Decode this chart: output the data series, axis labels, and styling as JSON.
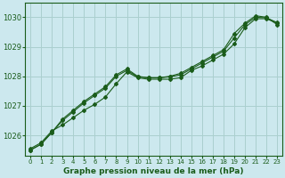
{
  "title": "Graphe pression niveau de la mer (hPa)",
  "bg_color": "#cce8ee",
  "grid_color": "#aacfcf",
  "line_color": "#1a5c1a",
  "xlim": [
    -0.5,
    23.5
  ],
  "ylim": [
    1025.3,
    1030.5
  ],
  "yticks": [
    1026,
    1027,
    1028,
    1029,
    1030
  ],
  "xticks": [
    0,
    1,
    2,
    3,
    4,
    5,
    6,
    7,
    8,
    9,
    10,
    11,
    12,
    13,
    14,
    15,
    16,
    17,
    18,
    19,
    20,
    21,
    22,
    23
  ],
  "line1_x": [
    0,
    1,
    2,
    3,
    4,
    5,
    6,
    7,
    8,
    9,
    10,
    11,
    12,
    13,
    14,
    15,
    16,
    17,
    18,
    19,
    20,
    21,
    22,
    23
  ],
  "line1_y": [
    1025.55,
    1025.75,
    1026.15,
    1026.35,
    1026.6,
    1026.85,
    1027.05,
    1027.3,
    1027.75,
    1028.15,
    1027.95,
    1027.9,
    1027.9,
    1027.9,
    1027.95,
    1028.2,
    1028.35,
    1028.55,
    1028.75,
    1029.1,
    1029.65,
    1029.95,
    1029.95,
    1029.8
  ],
  "line2_x": [
    0,
    1,
    2,
    3,
    4,
    5,
    6,
    7,
    8,
    9,
    10,
    11,
    12,
    13,
    14,
    15,
    16,
    17,
    18,
    19,
    20,
    21,
    22,
    23
  ],
  "line2_y": [
    1025.5,
    1025.7,
    1026.1,
    1026.55,
    1026.85,
    1027.15,
    1027.4,
    1027.65,
    1028.05,
    1028.25,
    1028.0,
    1027.95,
    1027.95,
    1028.0,
    1028.1,
    1028.3,
    1028.5,
    1028.7,
    1028.9,
    1029.45,
    1029.8,
    1030.05,
    1030.0,
    1029.75
  ],
  "line3_x": [
    0,
    1,
    2,
    3,
    4,
    5,
    6,
    7,
    8,
    9,
    10,
    11,
    12,
    13,
    14,
    15,
    16,
    17,
    18,
    19,
    20,
    21,
    22,
    23
  ],
  "line3_y": [
    1025.5,
    1025.7,
    1026.1,
    1026.5,
    1026.8,
    1027.1,
    1027.35,
    1027.6,
    1028.0,
    1028.2,
    1027.98,
    1027.95,
    1027.95,
    1027.98,
    1028.05,
    1028.25,
    1028.45,
    1028.65,
    1028.85,
    1029.3,
    1029.75,
    1030.0,
    1029.98,
    1029.82
  ]
}
